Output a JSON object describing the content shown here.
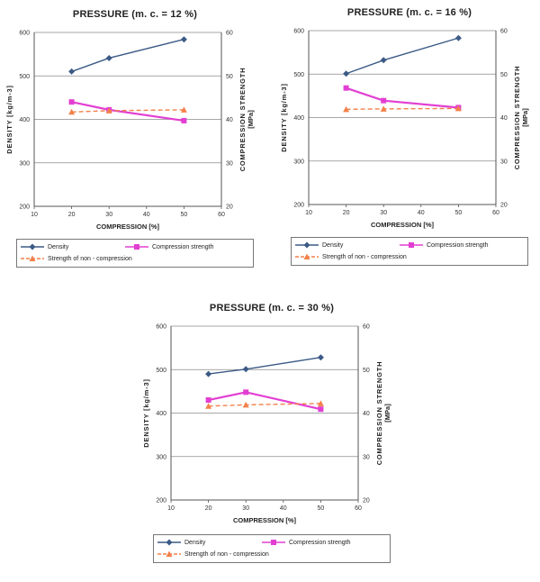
{
  "chart_data": [
    {
      "type": "line",
      "title": "PRESSURE  (m. c. = 12 %)",
      "xlabel": "COMPRESSION [%]",
      "ylabel": "DENSITY  [kg/m-3]",
      "y2label_line1": "COMPRESSION STRENGTH",
      "y2label_line2": "[MPa]",
      "xlim": [
        10,
        60
      ],
      "ylim": [
        200,
        600
      ],
      "y2lim": [
        20,
        60
      ],
      "x_ticks": [
        10,
        20,
        30,
        40,
        50,
        60
      ],
      "y_ticks": [
        200,
        300,
        400,
        500,
        600
      ],
      "y2_ticks": [
        20,
        30,
        40,
        50,
        60
      ],
      "grid": "horizontal",
      "legend_position": "bottom",
      "series": [
        {
          "name": "Density",
          "axis": "left",
          "color": "#3b5a86",
          "marker": "diamond",
          "style": "solid",
          "x": [
            20,
            30,
            50
          ],
          "y": [
            510,
            541,
            584
          ]
        },
        {
          "name": "Compression strength",
          "axis": "right",
          "color": "#e23fd2",
          "marker": "square",
          "style": "solid",
          "x": [
            20,
            30,
            50
          ],
          "y": [
            44,
            42.2,
            39.7
          ]
        },
        {
          "name": "Strength of non - compression",
          "axis": "right",
          "color": "#f3814a",
          "marker": "triangle",
          "style": "dashed",
          "x": [
            20,
            30,
            50
          ],
          "y": [
            41.7,
            42,
            42.2
          ]
        }
      ]
    },
    {
      "type": "line",
      "title": "PRESSURE  (m. c. = 16 %)",
      "xlabel": "COMPRESSION [%]",
      "ylabel": "DENSITY  [kg/m-3]",
      "y2label_line1": "COMPRESSION STRENGTH",
      "y2label_line2": "[MPa]",
      "xlim": [
        10,
        60
      ],
      "ylim": [
        200,
        600
      ],
      "y2lim": [
        20,
        60
      ],
      "x_ticks": [
        10,
        20,
        30,
        40,
        50,
        60
      ],
      "y_ticks": [
        200,
        300,
        400,
        500,
        600
      ],
      "y2_ticks": [
        20,
        30,
        40,
        50,
        60
      ],
      "grid": "horizontal",
      "legend_position": "bottom",
      "series": [
        {
          "name": "Density",
          "axis": "left",
          "color": "#3b5a86",
          "marker": "diamond",
          "style": "solid",
          "x": [
            20,
            30,
            50
          ],
          "y": [
            501,
            532,
            583
          ]
        },
        {
          "name": "Compression strength",
          "axis": "right",
          "color": "#e23fd2",
          "marker": "square",
          "style": "solid",
          "x": [
            20,
            30,
            50
          ],
          "y": [
            46.8,
            43.9,
            42.3
          ]
        },
        {
          "name": "Strength of non - compression",
          "axis": "right",
          "color": "#f3814a",
          "marker": "triangle",
          "style": "dashed",
          "x": [
            20,
            30,
            50
          ],
          "y": [
            41.9,
            42,
            42.1
          ]
        }
      ]
    },
    {
      "type": "line",
      "title": "PRESSURE  (m. c. = 30 %)",
      "xlabel": "COMPRESSION [%]",
      "ylabel": "DENSITY  [kg/m-3]",
      "y2label_line1": "COMPRESSION STRENGTH",
      "y2label_line2": "[MPa]",
      "xlim": [
        10,
        60
      ],
      "ylim": [
        200,
        600
      ],
      "y2lim": [
        20,
        60
      ],
      "x_ticks": [
        10,
        20,
        30,
        40,
        50,
        60
      ],
      "y_ticks": [
        200,
        300,
        400,
        500,
        600
      ],
      "y2_ticks": [
        20,
        30,
        40,
        50,
        60
      ],
      "grid": "horizontal",
      "legend_position": "bottom",
      "series": [
        {
          "name": "Density",
          "axis": "left",
          "color": "#3b5a86",
          "marker": "diamond",
          "style": "solid",
          "x": [
            20,
            30,
            50
          ],
          "y": [
            490,
            501,
            528
          ]
        },
        {
          "name": "Compression strength",
          "axis": "right",
          "color": "#e23fd2",
          "marker": "square",
          "style": "solid",
          "x": [
            20,
            30,
            50
          ],
          "y": [
            43,
            44.8,
            40.9
          ]
        },
        {
          "name": "Strength of non - compression",
          "axis": "right",
          "color": "#f3814a",
          "marker": "triangle",
          "style": "dashed",
          "x": [
            20,
            30,
            50
          ],
          "y": [
            41.6,
            41.9,
            42.2
          ]
        }
      ]
    }
  ]
}
